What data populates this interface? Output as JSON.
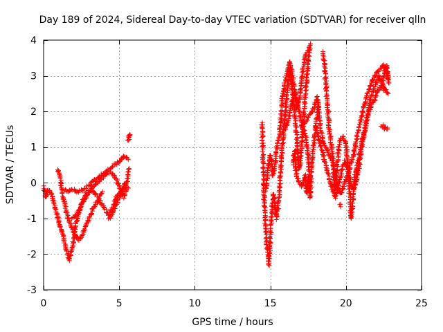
{
  "chart_data": {
    "type": "scatter",
    "title": "Day 189 of 2024, Sidereal Day-to-day VTEC variation (SDTVAR) for receiver qlln",
    "xlabel": "GPS time / hours",
    "ylabel": "SDTVAR / TECUs",
    "xlim": [
      0,
      25
    ],
    "ylim": [
      -3,
      4
    ],
    "xticks": [
      0,
      5,
      10,
      15,
      20,
      25
    ],
    "yticks": [
      -3,
      -2,
      -1,
      0,
      1,
      2,
      3,
      4
    ],
    "grid": true,
    "marker": "+",
    "color": "#ff0000",
    "series": [
      {
        "name": "SDTVAR",
        "tracks": [
          [
            [
              0.0,
              -0.1
            ],
            [
              0.15,
              -0.4
            ],
            [
              0.3,
              -0.2
            ],
            [
              0.5,
              -0.3
            ],
            [
              0.7,
              -0.6
            ],
            [
              0.9,
              -0.9
            ],
            [
              1.1,
              -1.2
            ],
            [
              1.3,
              -1.5
            ],
            [
              1.45,
              -1.8
            ],
            [
              1.6,
              -2.0
            ],
            [
              1.7,
              -2.15
            ],
            [
              1.85,
              -1.9
            ],
            [
              2.0,
              -1.6
            ],
            [
              2.1,
              -1.2
            ],
            [
              2.3,
              -0.9
            ],
            [
              2.5,
              -0.6
            ],
            [
              2.8,
              -0.3
            ],
            [
              3.1,
              -0.2
            ],
            [
              3.4,
              -0.3
            ],
            [
              3.7,
              -0.5
            ],
            [
              4.0,
              -0.7
            ],
            [
              4.3,
              -0.9
            ],
            [
              4.6,
              -0.7
            ],
            [
              4.8,
              -0.4
            ],
            [
              5.0,
              -0.3
            ],
            [
              5.2,
              -0.2
            ],
            [
              5.4,
              -0.1
            ],
            [
              5.6,
              -0.15
            ]
          ],
          [
            [
              0.9,
              0.35
            ],
            [
              1.0,
              0.3
            ],
            [
              1.1,
              0.1
            ],
            [
              1.2,
              -0.2
            ],
            [
              1.35,
              -0.5
            ],
            [
              1.5,
              -0.8
            ],
            [
              1.7,
              -1.1
            ],
            [
              1.9,
              -1.3
            ],
            [
              2.1,
              -1.5
            ],
            [
              2.3,
              -1.6
            ],
            [
              2.5,
              -1.5
            ],
            [
              2.7,
              -1.3
            ],
            [
              2.9,
              -1.1
            ],
            [
              3.1,
              -0.9
            ],
            [
              3.3,
              -0.7
            ],
            [
              3.5,
              -0.55
            ],
            [
              3.7,
              -0.4
            ],
            [
              3.9,
              -0.25
            ]
          ],
          [
            [
              1.4,
              -0.2
            ],
            [
              1.6,
              -0.25
            ],
            [
              1.8,
              -0.2
            ],
            [
              2.0,
              -0.2
            ],
            [
              2.3,
              -0.25
            ],
            [
              2.6,
              -0.2
            ],
            [
              2.9,
              -0.1
            ],
            [
              3.2,
              0.0
            ],
            [
              3.5,
              0.1
            ],
            [
              3.8,
              0.2
            ],
            [
              4.1,
              0.3
            ],
            [
              4.4,
              0.4
            ],
            [
              4.7,
              0.5
            ],
            [
              5.0,
              0.6
            ],
            [
              5.2,
              0.7
            ],
            [
              5.4,
              0.75
            ],
            [
              5.6,
              0.65
            ]
          ],
          [
            [
              1.9,
              -1.0
            ],
            [
              2.2,
              -0.9
            ],
            [
              2.5,
              -0.6
            ],
            [
              2.8,
              -0.4
            ],
            [
              3.1,
              -0.2
            ],
            [
              3.4,
              -0.05
            ],
            [
              3.7,
              0.05
            ],
            [
              4.0,
              0.2
            ],
            [
              4.3,
              0.3
            ],
            [
              4.6,
              0.25
            ],
            [
              4.9,
              0.0
            ],
            [
              5.1,
              -0.2
            ],
            [
              5.3,
              -0.4
            ],
            [
              5.5,
              -0.2
            ]
          ],
          [
            [
              4.3,
              -1.0
            ],
            [
              4.5,
              -0.9
            ],
            [
              4.7,
              -0.7
            ],
            [
              4.9,
              -0.5
            ],
            [
              5.1,
              -0.3
            ],
            [
              5.3,
              -0.1
            ],
            [
              5.5,
              0.0
            ],
            [
              5.65,
              0.4
            ]
          ],
          [
            [
              5.6,
              1.2
            ],
            [
              5.62,
              1.3
            ],
            [
              5.65,
              1.25
            ],
            [
              5.7,
              1.35
            ]
          ],
          [
            [
              14.45,
              1.7
            ],
            [
              14.5,
              1.0
            ],
            [
              14.55,
              0.2
            ],
            [
              14.6,
              -0.6
            ],
            [
              14.7,
              -1.4
            ],
            [
              14.8,
              -1.9
            ],
            [
              14.9,
              -2.3
            ],
            [
              15.0,
              -1.5
            ],
            [
              15.1,
              -0.8
            ],
            [
              15.2,
              -0.3
            ],
            [
              15.3,
              -0.6
            ],
            [
              15.4,
              -1.0
            ],
            [
              15.5,
              -0.7
            ],
            [
              15.6,
              -0.2
            ],
            [
              15.7,
              0.5
            ],
            [
              15.8,
              1.0
            ],
            [
              15.9,
              1.6
            ],
            [
              16.0,
              2.0
            ],
            [
              16.1,
              2.5
            ],
            [
              16.2,
              2.9
            ],
            [
              16.3,
              3.2
            ],
            [
              16.4,
              2.8
            ],
            [
              16.5,
              2.4
            ],
            [
              16.6,
              2.0
            ],
            [
              16.7,
              1.5
            ],
            [
              16.8,
              1.0
            ],
            [
              16.9,
              0.4
            ],
            [
              17.0,
              0.6
            ],
            [
              17.1,
              1.2
            ],
            [
              17.2,
              1.8
            ],
            [
              17.3,
              2.4
            ],
            [
              17.4,
              2.9
            ],
            [
              17.5,
              3.4
            ],
            [
              17.6,
              3.8
            ],
            [
              17.65,
              3.9
            ]
          ],
          [
            [
              14.7,
              -0.2
            ],
            [
              14.85,
              0.4
            ],
            [
              15.0,
              0.8
            ],
            [
              15.15,
              0.2
            ],
            [
              15.3,
              0.5
            ],
            [
              15.45,
              1.1
            ],
            [
              15.6,
              1.3
            ],
            [
              15.8,
              2.4
            ],
            [
              16.0,
              2.9
            ],
            [
              16.15,
              3.2
            ],
            [
              16.3,
              3.4
            ],
            [
              16.45,
              3.0
            ],
            [
              16.6,
              2.6
            ],
            [
              16.75,
              2.1
            ],
            [
              16.9,
              2.3
            ],
            [
              17.05,
              2.8
            ],
            [
              17.2,
              3.3
            ],
            [
              17.35,
              3.6
            ],
            [
              17.5,
              3.7
            ]
          ],
          [
            [
              16.0,
              1.5
            ],
            [
              16.2,
              1.8
            ],
            [
              16.4,
              2.2
            ],
            [
              16.6,
              2.5
            ],
            [
              16.8,
              2.2
            ],
            [
              17.0,
              1.8
            ],
            [
              17.2,
              1.5
            ],
            [
              17.4,
              1.2
            ],
            [
              17.5,
              0.8
            ],
            [
              17.55,
              0.3
            ],
            [
              17.6,
              -0.2
            ],
            [
              17.65,
              -0.4
            ],
            [
              17.7,
              0.2
            ],
            [
              17.8,
              0.8
            ],
            [
              17.9,
              1.2
            ],
            [
              18.0,
              1.6
            ],
            [
              18.1,
              1.9
            ],
            [
              18.2,
              2.2
            ]
          ],
          [
            [
              17.0,
              1.6
            ],
            [
              17.3,
              1.7
            ],
            [
              17.6,
              1.9
            ],
            [
              17.9,
              2.1
            ],
            [
              18.1,
              2.4
            ],
            [
              18.2,
              2.0
            ],
            [
              18.3,
              1.6
            ],
            [
              18.4,
              1.3
            ],
            [
              18.5,
              1.1
            ],
            [
              18.7,
              1.0
            ],
            [
              18.9,
              0.8
            ],
            [
              19.1,
              0.6
            ],
            [
              19.3,
              0.2
            ],
            [
              19.5,
              -0.2
            ],
            [
              19.7,
              -0.3
            ],
            [
              19.9,
              0.0
            ],
            [
              20.1,
              0.2
            ],
            [
              20.3,
              0.5
            ],
            [
              20.5,
              0.8
            ],
            [
              20.7,
              1.2
            ],
            [
              20.9,
              1.6
            ],
            [
              21.1,
              2.0
            ],
            [
              21.3,
              2.3
            ],
            [
              21.5,
              2.6
            ],
            [
              21.7,
              2.8
            ],
            [
              21.9,
              3.0
            ],
            [
              22.1,
              3.1
            ],
            [
              22.3,
              3.2
            ],
            [
              22.5,
              3.3
            ],
            [
              22.7,
              3.1
            ],
            [
              22.8,
              2.9
            ]
          ],
          [
            [
              18.5,
              3.65
            ],
            [
              18.6,
              3.2
            ],
            [
              18.7,
              2.6
            ],
            [
              18.8,
              2.0
            ],
            [
              18.9,
              1.5
            ],
            [
              19.0,
              1.2
            ],
            [
              19.1,
              0.8
            ],
            [
              19.2,
              0.3
            ],
            [
              19.25,
              -0.2
            ],
            [
              19.3,
              -0.1
            ],
            [
              19.4,
              0.4
            ],
            [
              19.5,
              0.9
            ],
            [
              19.6,
              1.2
            ],
            [
              19.8,
              1.3
            ],
            [
              20.0,
              1.1
            ],
            [
              20.1,
              0.6
            ],
            [
              20.2,
              0.0
            ],
            [
              20.3,
              -0.6
            ],
            [
              20.35,
              -1.0
            ],
            [
              20.4,
              -0.8
            ],
            [
              20.5,
              -0.3
            ],
            [
              20.6,
              0.2
            ],
            [
              20.8,
              0.6
            ],
            [
              21.0,
              1.0
            ],
            [
              21.2,
              1.4
            ],
            [
              21.4,
              1.8
            ],
            [
              21.6,
              2.3
            ],
            [
              21.8,
              2.6
            ],
            [
              22.0,
              2.8
            ],
            [
              22.2,
              3.0
            ],
            [
              22.4,
              2.8
            ],
            [
              22.6,
              2.6
            ],
            [
              22.8,
              2.5
            ]
          ],
          [
            [
              18.0,
              1.6
            ],
            [
              18.3,
              1.1
            ],
            [
              18.6,
              0.6
            ],
            [
              18.9,
              0.1
            ],
            [
              19.1,
              -0.2
            ],
            [
              19.3,
              -0.4
            ],
            [
              19.5,
              -0.1
            ],
            [
              19.7,
              0.3
            ],
            [
              19.9,
              0.6
            ],
            [
              20.1,
              0.4
            ],
            [
              20.3,
              0.0
            ],
            [
              20.5,
              -0.2
            ],
            [
              20.7,
              0.1
            ],
            [
              20.9,
              0.5
            ],
            [
              21.1,
              1.2
            ],
            [
              21.3,
              1.6
            ],
            [
              21.5,
              2.0
            ],
            [
              21.7,
              2.2
            ],
            [
              21.9,
              2.3
            ],
            [
              22.1,
              2.6
            ],
            [
              22.3,
              2.7
            ],
            [
              22.5,
              2.6
            ]
          ],
          [
            [
              16.5,
              0.5
            ],
            [
              16.6,
              0.9
            ],
            [
              16.7,
              0.3
            ],
            [
              16.9,
              0.0
            ],
            [
              17.1,
              -0.1
            ],
            [
              17.3,
              0.2
            ],
            [
              17.4,
              -0.3
            ],
            [
              17.5,
              0.1
            ]
          ],
          [
            [
              19.6,
              -0.65
            ],
            [
              19.65,
              -0.6
            ]
          ],
          [
            [
              22.35,
              1.55
            ],
            [
              22.45,
              1.6
            ],
            [
              22.55,
              1.5
            ],
            [
              22.65,
              1.55
            ],
            [
              22.75,
              1.5
            ]
          ],
          [
            [
              22.4,
              2.8
            ],
            [
              22.5,
              3.0
            ],
            [
              22.6,
              3.2
            ],
            [
              22.7,
              3.3
            ],
            [
              22.8,
              3.0
            ],
            [
              22.85,
              2.8
            ]
          ]
        ]
      }
    ]
  }
}
